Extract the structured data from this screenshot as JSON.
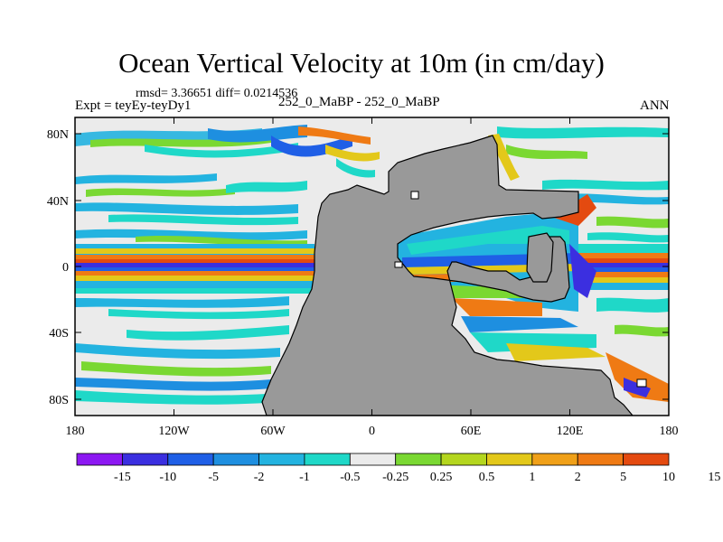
{
  "title": "Ocean Vertical Velocity at 10m (in cm/day)",
  "subtitle_left_top": "rmsd= 3.36651 diff= 0.0214536",
  "subtitle_left": "Expt = teyEy-teyDy1",
  "subtitle_center": "252_0_MaBP - 252_0_MaBP",
  "subtitle_right": "ANN",
  "y_ticks": [
    "80N",
    "40N",
    "0",
    "40S",
    "80S"
  ],
  "x_ticks": [
    "180",
    "120W",
    "60W",
    "0",
    "60E",
    "120E",
    "180"
  ],
  "colorbar": {
    "colors": [
      "#8c17f2",
      "#3b2fe0",
      "#1f5fe6",
      "#1e8fe0",
      "#23b3e0",
      "#1fd8c8",
      "#ebebeb",
      "#7ad832",
      "#b4d61e",
      "#e3c81a",
      "#f0a018",
      "#ef7a14",
      "#e44a10"
    ],
    "labels": [
      "-15",
      "-10",
      "-5",
      "-2",
      "-1",
      "-0.5",
      "-0.25",
      "0.25",
      "0.5",
      "1",
      "2",
      "5",
      "10",
      "15"
    ]
  },
  "colors": {
    "land": "#999999",
    "neutral": "#ebebeb"
  }
}
